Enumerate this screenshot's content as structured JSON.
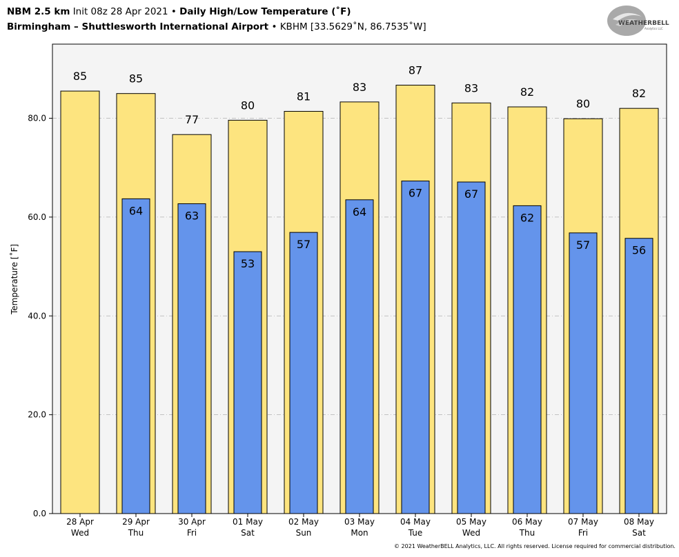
{
  "header": {
    "line1_model": "NBM 2.5 km",
    "line1_init": "Init 08z 28 Apr 2021",
    "line1_sep": "•",
    "line1_title": "Daily High/Low Temperature (˚F)",
    "line2_station": "Birmingham – Shuttlesworth International Airport",
    "line2_sep": "•",
    "line2_loc": "KBHM [33.5629˚N, 86.7535˚W]"
  },
  "logo": {
    "text_main": "WEATHERBELL",
    "text_sub": "Analytics LLC",
    "icon": "swirl-logo-icon"
  },
  "footer": {
    "copyright": "© 2021 WeatherBELL Analytics, LLC. All rights reserved. License required for commercial distribution."
  },
  "colors": {
    "high": "#fde47f",
    "low": "#6494eb",
    "plot_bg": "#f4f4f4",
    "grid": "#b0b0b0"
  },
  "chart_data": {
    "type": "bar",
    "ylabel": "Temperature [˚F]",
    "ylim": [
      0,
      95
    ],
    "yticks": [
      0.0,
      20.0,
      40.0,
      60.0,
      80.0
    ],
    "ytick_labels": [
      "0.0",
      "20.0",
      "40.0",
      "60.0",
      "80.0"
    ],
    "grid": "horizontal dash-dot",
    "categories": [
      [
        "28 Apr",
        "Wed"
      ],
      [
        "29 Apr",
        "Thu"
      ],
      [
        "30 Apr",
        "Fri"
      ],
      [
        "01 May",
        "Sat"
      ],
      [
        "02 May",
        "Sun"
      ],
      [
        "03 May",
        "Mon"
      ],
      [
        "04 May",
        "Tue"
      ],
      [
        "05 May",
        "Wed"
      ],
      [
        "06 May",
        "Thu"
      ],
      [
        "07 May",
        "Fri"
      ],
      [
        "08 May",
        "Sat"
      ]
    ],
    "series": [
      {
        "values": [
          85.5,
          85,
          76.7,
          79.6,
          81.4,
          83.3,
          86.7,
          83.1,
          82.3,
          79.9,
          82
        ]
      },
      {
        "values": [
          null,
          63.7,
          62.7,
          53,
          56.9,
          63.5,
          67.3,
          67.1,
          62.3,
          56.8,
          55.7
        ]
      }
    ],
    "data_labels": {
      "high": [
        "85",
        "85",
        "77",
        "80",
        "81",
        "83",
        "87",
        "83",
        "82",
        "80",
        "82"
      ],
      "low": [
        null,
        "64",
        "63",
        "53",
        "57",
        "64",
        "67",
        "67",
        "62",
        "57",
        "56"
      ]
    }
  }
}
